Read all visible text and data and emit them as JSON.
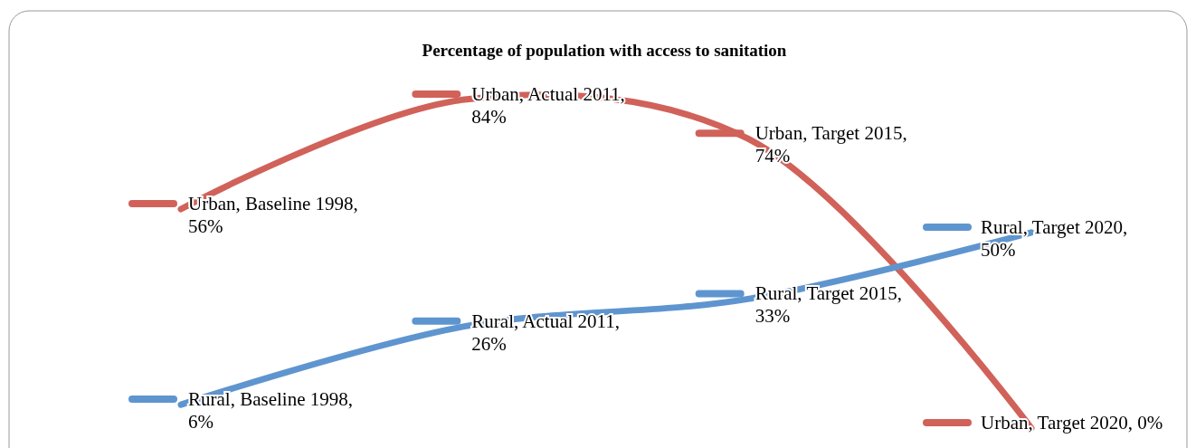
{
  "chart_data": {
    "type": "line",
    "title": "Percentage of population with access to sanitation",
    "categories": [
      null,
      null,
      null,
      null
    ],
    "series": [
      {
        "color": "#d0625a",
        "values": [
          56,
          84,
          74,
          0
        ],
        "value_labels": [
          "Urban, Baseline 1998, 56%",
          "Urban, Actual 2011, 84%",
          "Urban, Target 2015, 74%",
          "Urban, Target 2020, 0%"
        ]
      },
      {
        "color": "#5f95cf",
        "values": [
          6,
          26,
          33,
          50
        ],
        "value_labels": [
          "Rural, Baseline 1998, 6%",
          "Rural, Actual 2011, 26%",
          "Rural, Target 2015, 33%",
          "Rural, Target 2020, 50%"
        ]
      }
    ],
    "marker": "none",
    "line_style": "solid",
    "tick_labels": false
  }
}
